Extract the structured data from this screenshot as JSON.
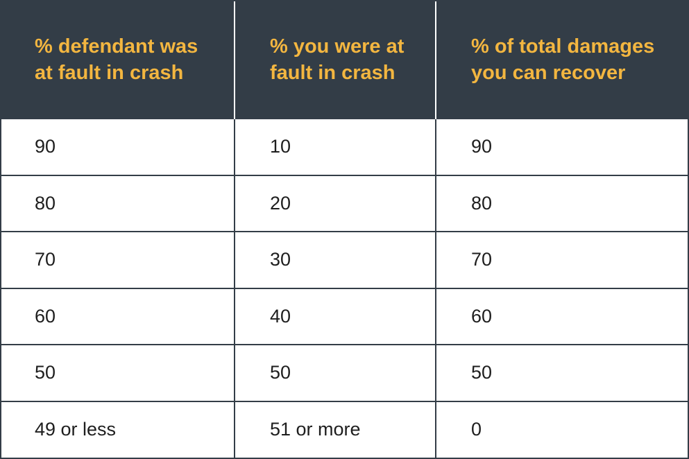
{
  "chart_data": {
    "type": "table",
    "columns": [
      "% defendant was at fault in crash",
      "% you were at fault in crash",
      "% of total damages you can recover"
    ],
    "rows": [
      [
        "90",
        "10",
        "90"
      ],
      [
        "80",
        "20",
        "80"
      ],
      [
        "70",
        "30",
        "70"
      ],
      [
        "60",
        "40",
        "60"
      ],
      [
        "50",
        "50",
        "50"
      ],
      [
        "49 or less",
        "51 or more",
        "0"
      ]
    ]
  },
  "colors": {
    "header_background": "#333d47",
    "header_text": "#f3b640",
    "body_text": "#1e1e1e",
    "grid_lines": "#333d47"
  }
}
